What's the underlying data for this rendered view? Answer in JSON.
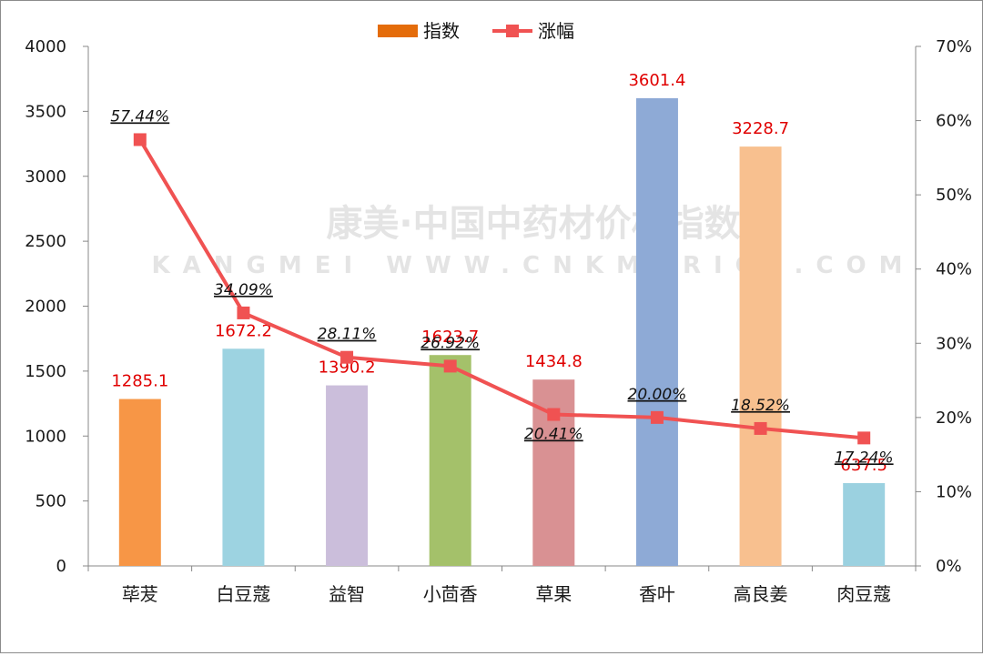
{
  "chart_data": {
    "type": "bar",
    "categories": [
      "荜茇",
      "白豆蔻",
      "益智",
      "小茴香",
      "草果",
      "香叶",
      "高良姜",
      "肉豆蔻"
    ],
    "series": [
      {
        "name": "指数",
        "type": "bar",
        "axis": "left",
        "values": [
          1285.1,
          1672.2,
          1390.2,
          1623.7,
          1434.8,
          3601.4,
          3228.7,
          637.5
        ],
        "value_labels": [
          "1285.1",
          "1672.2",
          "1390.2",
          "1623.7",
          "1434.8",
          "3601.4",
          "3228.7",
          "637.5"
        ],
        "colors": [
          "#f79646",
          "#9dd3e1",
          "#cbbedb",
          "#a4c16a",
          "#d99193",
          "#8eaad6",
          "#f8c08f",
          "#9bd1e0"
        ]
      },
      {
        "name": "涨幅",
        "type": "line",
        "axis": "right",
        "values": [
          57.44,
          34.09,
          28.11,
          26.92,
          20.41,
          20.0,
          18.52,
          17.24
        ],
        "value_labels": [
          "57.44%",
          "34.09%",
          "28.11%",
          "26.92%",
          "20.41%",
          "20.00%",
          "18.52%",
          "17.24%"
        ],
        "color": "#f05252"
      }
    ],
    "y_left": {
      "range": [
        0,
        4000
      ],
      "ticks": [
        "0",
        "500",
        "1000",
        "1500",
        "2000",
        "2500",
        "3000",
        "3500",
        "4000"
      ]
    },
    "y_right": {
      "range": [
        0,
        70
      ],
      "ticks": [
        "0%",
        "10%",
        "20%",
        "30%",
        "40%",
        "50%",
        "60%",
        "70%"
      ]
    },
    "legend_position": "top-center",
    "legend_bar_color": "#e46c0a",
    "grid": false
  },
  "watermark": {
    "line1": "康美·中国中药材价格指数",
    "line2": "KANGMEI WWW.CNKMPRICE.COM"
  }
}
